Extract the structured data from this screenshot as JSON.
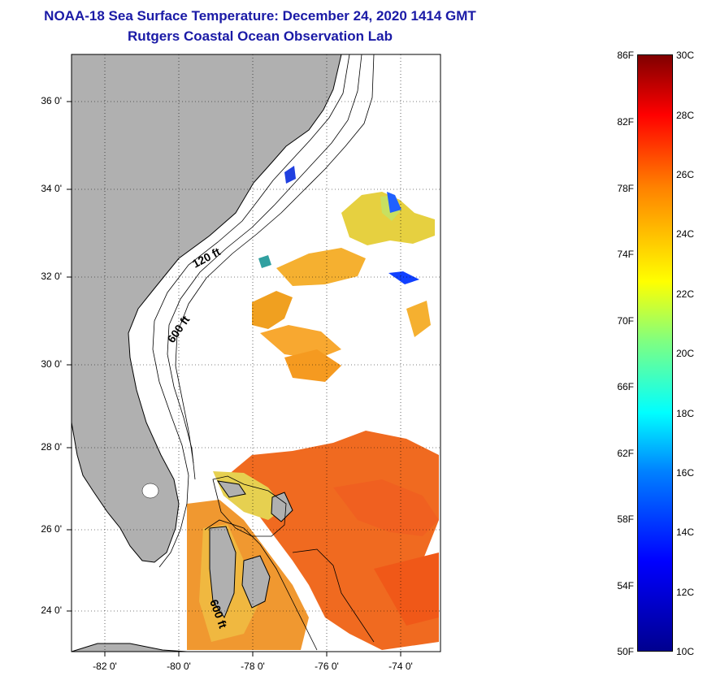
{
  "header": {
    "title": "NOAA-18 Sea Surface Temperature:  December 24, 2020 1414 GMT",
    "subtitle": "Rutgers Coastal Ocean Observation Lab"
  },
  "map": {
    "lat_labels": [
      "36 0'",
      "34 0'",
      "32 0'",
      "30 0'",
      "28 0'",
      "26 0'",
      "24 0'"
    ],
    "lon_labels": [
      "-82 0'",
      "-80 0'",
      "-78 0'",
      "-76 0'",
      "-74 0'"
    ],
    "contour_labels": [
      "120 ft",
      "600 ft",
      "600 ft"
    ],
    "land_color": "#b0b0b0"
  },
  "colorbar": {
    "fahrenheit_labels": [
      "86F",
      "82F",
      "78F",
      "74F",
      "70F",
      "66F",
      "62F",
      "58F",
      "54F",
      "50F"
    ],
    "celsius_labels": [
      "30C",
      "28C",
      "26C",
      "24C",
      "22C",
      "20C",
      "18C",
      "16C",
      "14C",
      "12C",
      "10C"
    ],
    "min_c": 10,
    "max_c": 30
  }
}
